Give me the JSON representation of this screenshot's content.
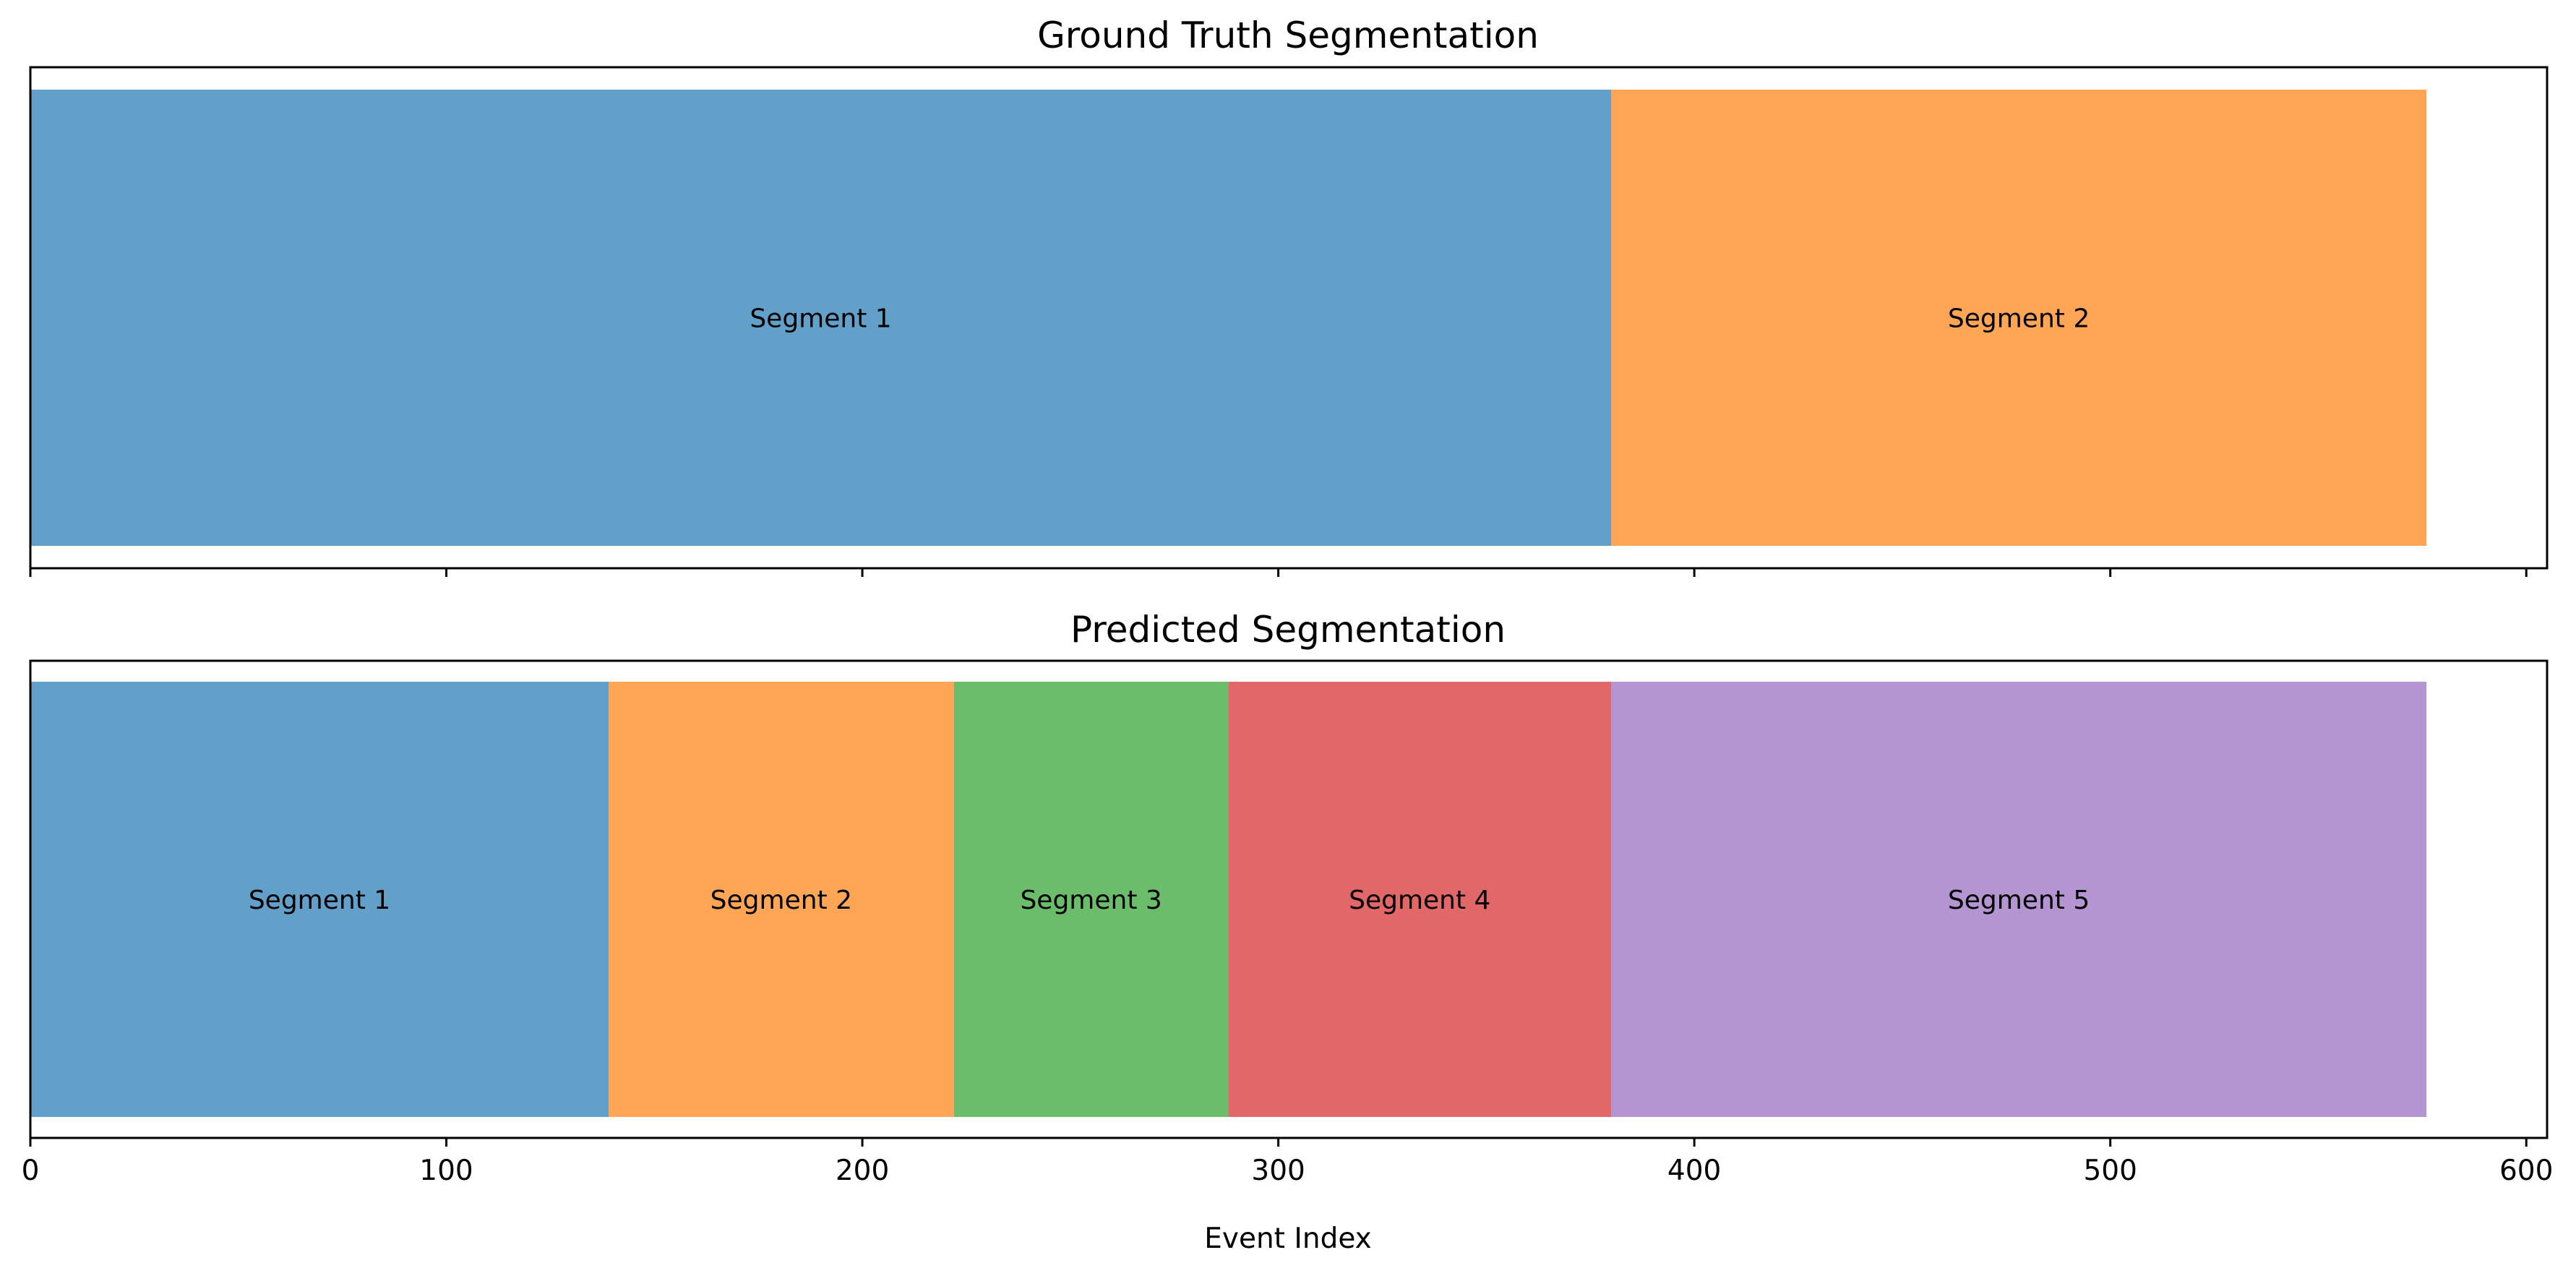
{
  "chart_data": {
    "type": "bar",
    "orientation": "horizontal-stacked-segments",
    "x_axis": {
      "label": "Event Index",
      "lim": [
        0,
        605
      ],
      "ticks": [
        0,
        100,
        200,
        300,
        400,
        500,
        600
      ],
      "tick_labels": [
        "0",
        "100",
        "200",
        "300",
        "400",
        "500",
        "600"
      ]
    },
    "grid": false,
    "shared_x": true,
    "panels": [
      {
        "title": "Ground Truth Segmentation",
        "segments": [
          {
            "label": "Segment 1",
            "start": 0,
            "end": 380,
            "color": "#1f77b4"
          },
          {
            "label": "Segment 2",
            "start": 380,
            "end": 576,
            "color": "#ff7f0e"
          }
        ]
      },
      {
        "title": "Predicted Segmentation",
        "segments": [
          {
            "label": "Segment 1",
            "start": 0,
            "end": 139,
            "color": "#1f77b4"
          },
          {
            "label": "Segment 2",
            "start": 139,
            "end": 222,
            "color": "#ff7f0e"
          },
          {
            "label": "Segment 3",
            "start": 222,
            "end": 288,
            "color": "#2ca02c"
          },
          {
            "label": "Segment 4",
            "start": 288,
            "end": 380,
            "color": "#d62728"
          },
          {
            "label": "Segment 5",
            "start": 380,
            "end": 576,
            "color": "#9467bd"
          }
        ]
      }
    ],
    "bar_alpha": 0.7
  }
}
